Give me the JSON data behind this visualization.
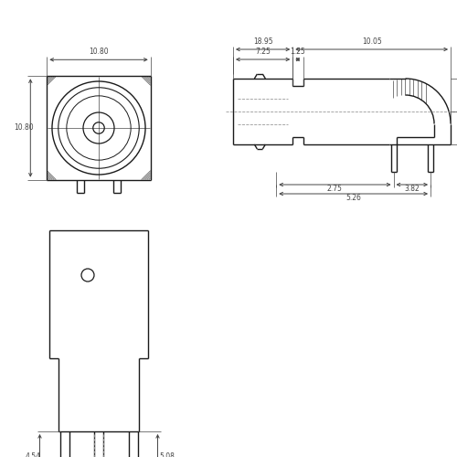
{
  "bg_color": "#ffffff",
  "line_color": "#1a1a1a",
  "dim_color": "#444444",
  "hidden_color": "#999999",
  "font_size": 5.5,
  "lw_main": 1.0,
  "lw_dim": 0.7,
  "lw_hidden": 0.6
}
